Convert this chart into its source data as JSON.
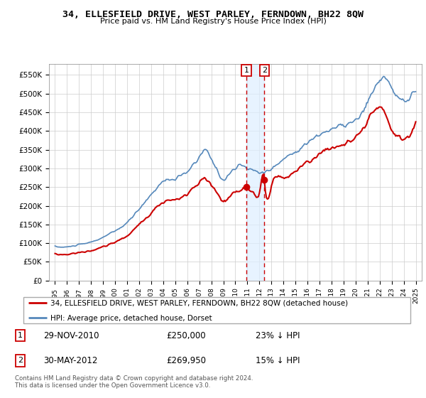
{
  "title": "34, ELLESFIELD DRIVE, WEST PARLEY, FERNDOWN, BH22 8QW",
  "subtitle": "Price paid vs. HM Land Registry's House Price Index (HPI)",
  "legend_line1": "34, ELLESFIELD DRIVE, WEST PARLEY, FERNDOWN, BH22 8QW (detached house)",
  "legend_line2": "HPI: Average price, detached house, Dorset",
  "transaction1_date": "29-NOV-2010",
  "transaction1_price": "£250,000",
  "transaction1_hpi": "23% ↓ HPI",
  "transaction2_date": "30-MAY-2012",
  "transaction2_price": "£269,950",
  "transaction2_hpi": "15% ↓ HPI",
  "footer": "Contains HM Land Registry data © Crown copyright and database right 2024.\nThis data is licensed under the Open Government Licence v3.0.",
  "red_color": "#cc0000",
  "blue_color": "#5588bb",
  "shade_color": "#ddeeff",
  "ylim": [
    0,
    580000
  ],
  "yticks": [
    0,
    50000,
    100000,
    150000,
    200000,
    250000,
    300000,
    350000,
    400000,
    450000,
    500000,
    550000
  ],
  "ytick_labels": [
    "£0",
    "£50K",
    "£100K",
    "£150K",
    "£200K",
    "£250K",
    "£300K",
    "£350K",
    "£400K",
    "£450K",
    "£500K",
    "£550K"
  ],
  "transaction1_x": 2010.91,
  "transaction1_y": 250000,
  "transaction2_x": 2012.41,
  "transaction2_y": 269950,
  "xlim_min": 1994.5,
  "xlim_max": 2025.5
}
